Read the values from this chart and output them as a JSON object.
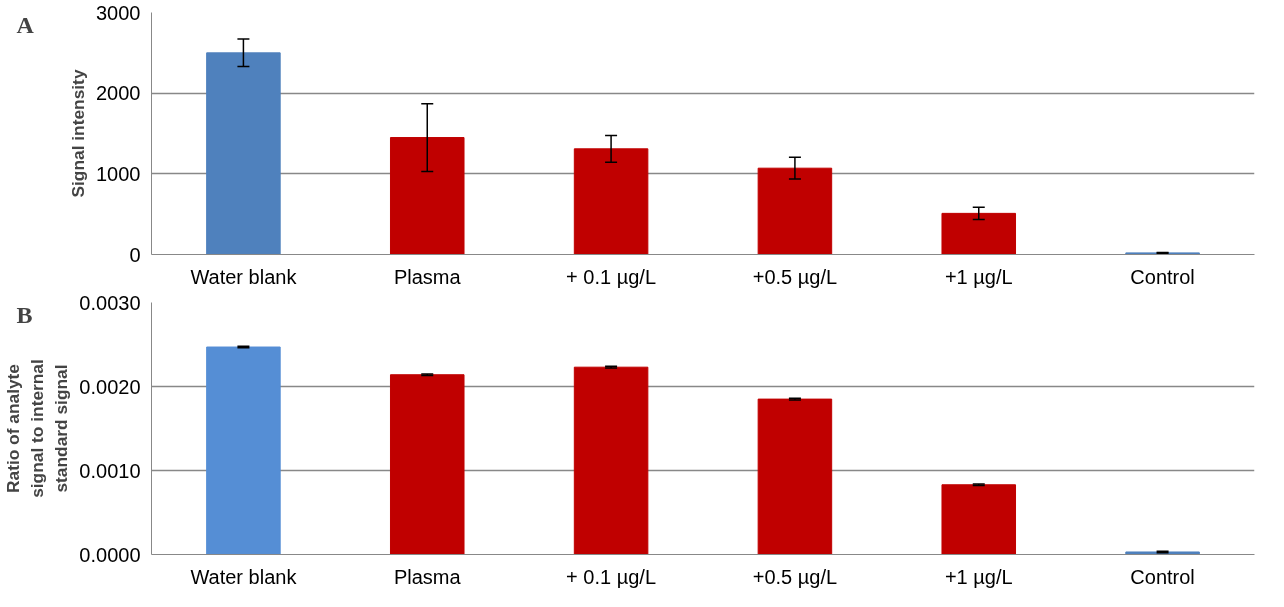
{
  "chart_data": [
    {
      "type": "bar",
      "annotations": [
        "A"
      ],
      "ylabel": "Signal intensity",
      "categories": [
        "Water blank",
        "Plasma",
        "+ 0.1 µg/L",
        "+0.5 µg/L",
        "+1 µg/L",
        "Control"
      ],
      "values": [
        2500,
        1450,
        1310,
        1070,
        510,
        20
      ],
      "errors": [
        170,
        420,
        165,
        135,
        75,
        5
      ],
      "colors": [
        "#4f81bd",
        "#c00000",
        "#c00000",
        "#c00000",
        "#c00000",
        "#4f81bd"
      ],
      "ylim": [
        0,
        3000
      ],
      "yticks": [
        0,
        1000,
        2000,
        3000
      ],
      "grid": "y"
    },
    {
      "type": "bar",
      "annotations": [
        "B"
      ],
      "ylabel": "Ratio of analyte\nsignal to internal\nstandard signal",
      "categories": [
        "Water blank",
        "Plasma",
        "+ 0.1 µg/L",
        "+0.5 µg/L",
        "+1 µg/L",
        "Control"
      ],
      "values": [
        0.00247,
        0.00214,
        0.00223,
        0.00185,
        0.00083,
        3e-05
      ],
      "errors": [
        1e-05,
        1e-05,
        1e-05,
        1e-05,
        1e-05,
        1e-05
      ],
      "colors": [
        "#558ed5",
        "#c00000",
        "#c00000",
        "#c00000",
        "#c00000",
        "#4f81bd"
      ],
      "ylim": [
        0,
        0.003
      ],
      "yticks": [
        {
          "value": 0,
          "label": "0.0000"
        },
        {
          "value": 0.001,
          "label": "0.0010"
        },
        {
          "value": 0.002,
          "label": "0.0020"
        },
        {
          "value": 0.003,
          "label": "0.0030"
        }
      ],
      "grid": "y"
    }
  ]
}
